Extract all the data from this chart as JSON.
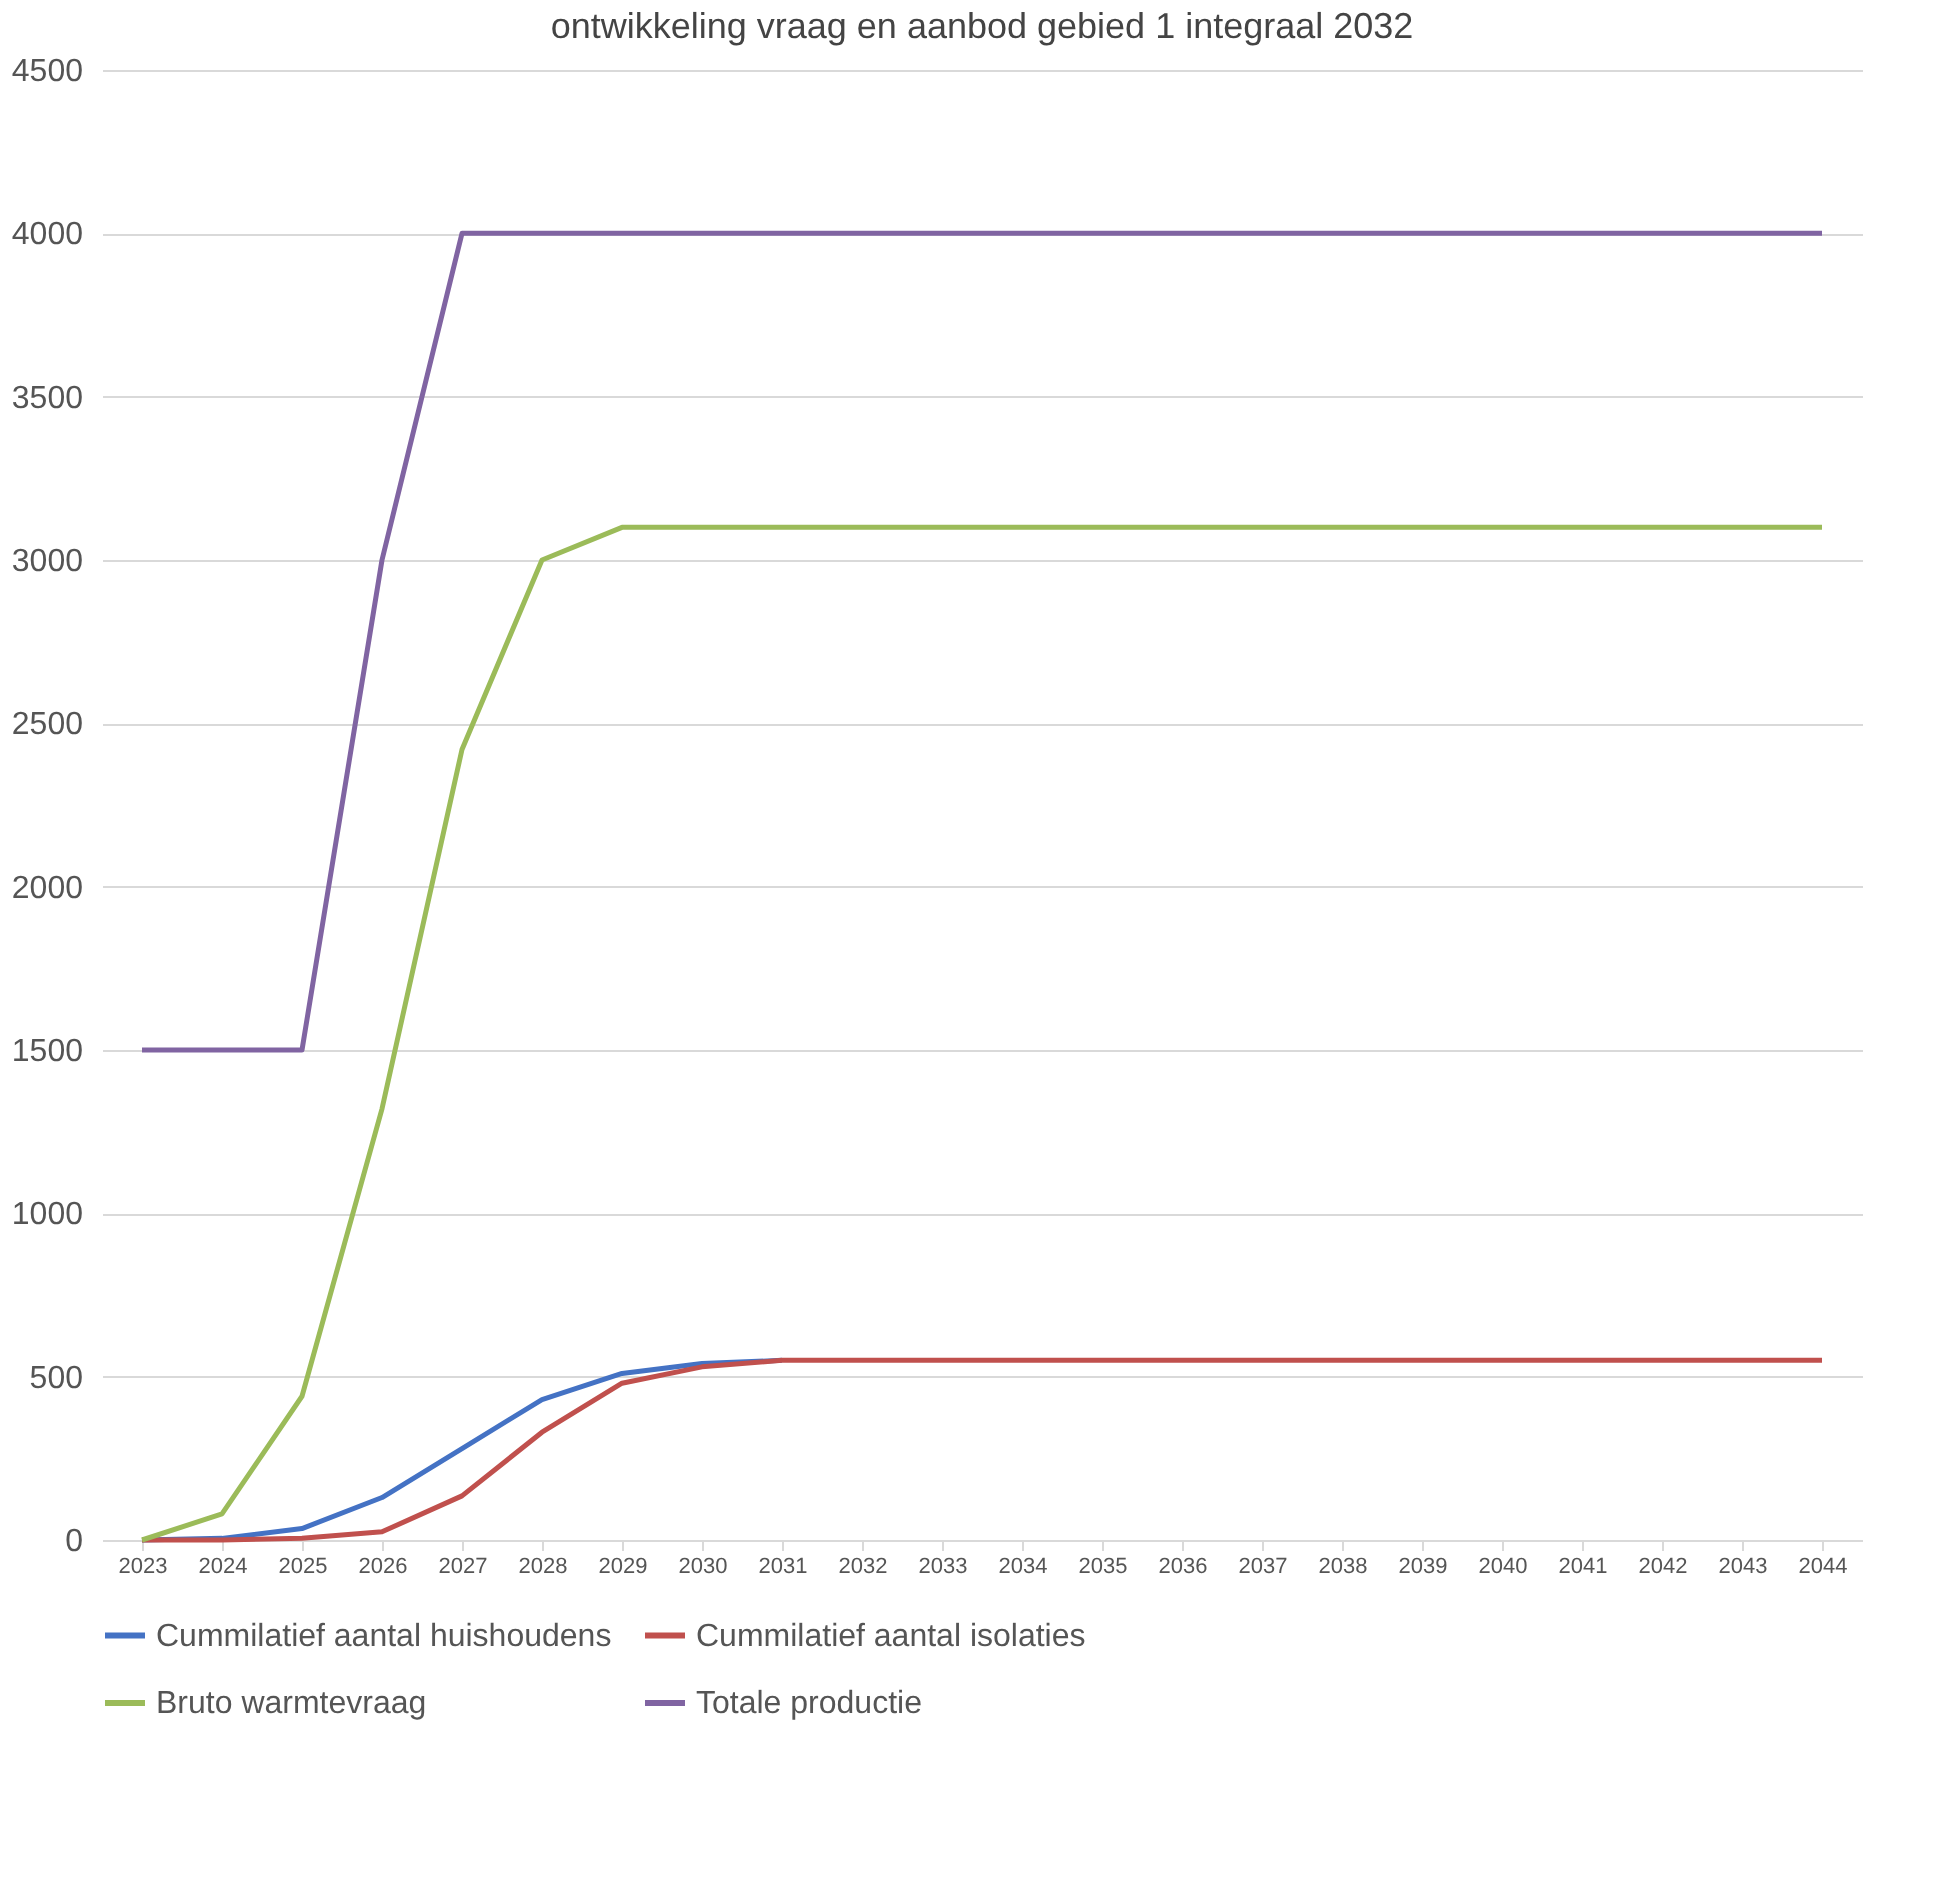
{
  "chart_data": {
    "type": "line",
    "title": "ontwikkeling vraag en aanbod gebied 1 integraal 2032",
    "categories": [
      "2023",
      "2024",
      "2025",
      "2026",
      "2027",
      "2028",
      "2029",
      "2030",
      "2031",
      "2032",
      "2033",
      "2034",
      "2035",
      "2036",
      "2037",
      "2038",
      "2039",
      "2040",
      "2041",
      "2042",
      "2043",
      "2044"
    ],
    "series": [
      {
        "name": "Cummilatief aantal huishoudens",
        "color": "#4472c4",
        "values": [
          0,
          5,
          35,
          130,
          280,
          430,
          510,
          540,
          550,
          null,
          null,
          null,
          null,
          null,
          null,
          null,
          null,
          null,
          null,
          null,
          null,
          null
        ]
      },
      {
        "name": "Cummilatief aantal isolaties",
        "color": "#c0504d",
        "values": [
          0,
          0,
          5,
          25,
          135,
          330,
          480,
          530,
          550,
          550,
          550,
          550,
          550,
          550,
          550,
          550,
          550,
          550,
          550,
          550,
          550,
          550
        ]
      },
      {
        "name": "Bruto warmtevraag",
        "color": "#9bbb59",
        "values": [
          0,
          80,
          440,
          1320,
          2420,
          3000,
          3100,
          3100,
          3100,
          3100,
          3100,
          3100,
          3100,
          3100,
          3100,
          3100,
          3100,
          3100,
          3100,
          3100,
          3100,
          3100
        ]
      },
      {
        "name": "Totale productie",
        "color": "#8064a2",
        "values": [
          1500,
          1500,
          1500,
          3000,
          4000,
          4000,
          4000,
          4000,
          4000,
          4000,
          4000,
          4000,
          4000,
          4000,
          4000,
          4000,
          4000,
          4000,
          4000,
          4000,
          4000,
          4000
        ]
      }
    ],
    "ylim": [
      0,
      4500
    ],
    "yticks": [
      0,
      500,
      1000,
      1500,
      2000,
      2500,
      3000,
      3500,
      4000,
      4500
    ],
    "grid": "y",
    "legend": "bottom",
    "marker": "none",
    "line_style": "solid"
  }
}
